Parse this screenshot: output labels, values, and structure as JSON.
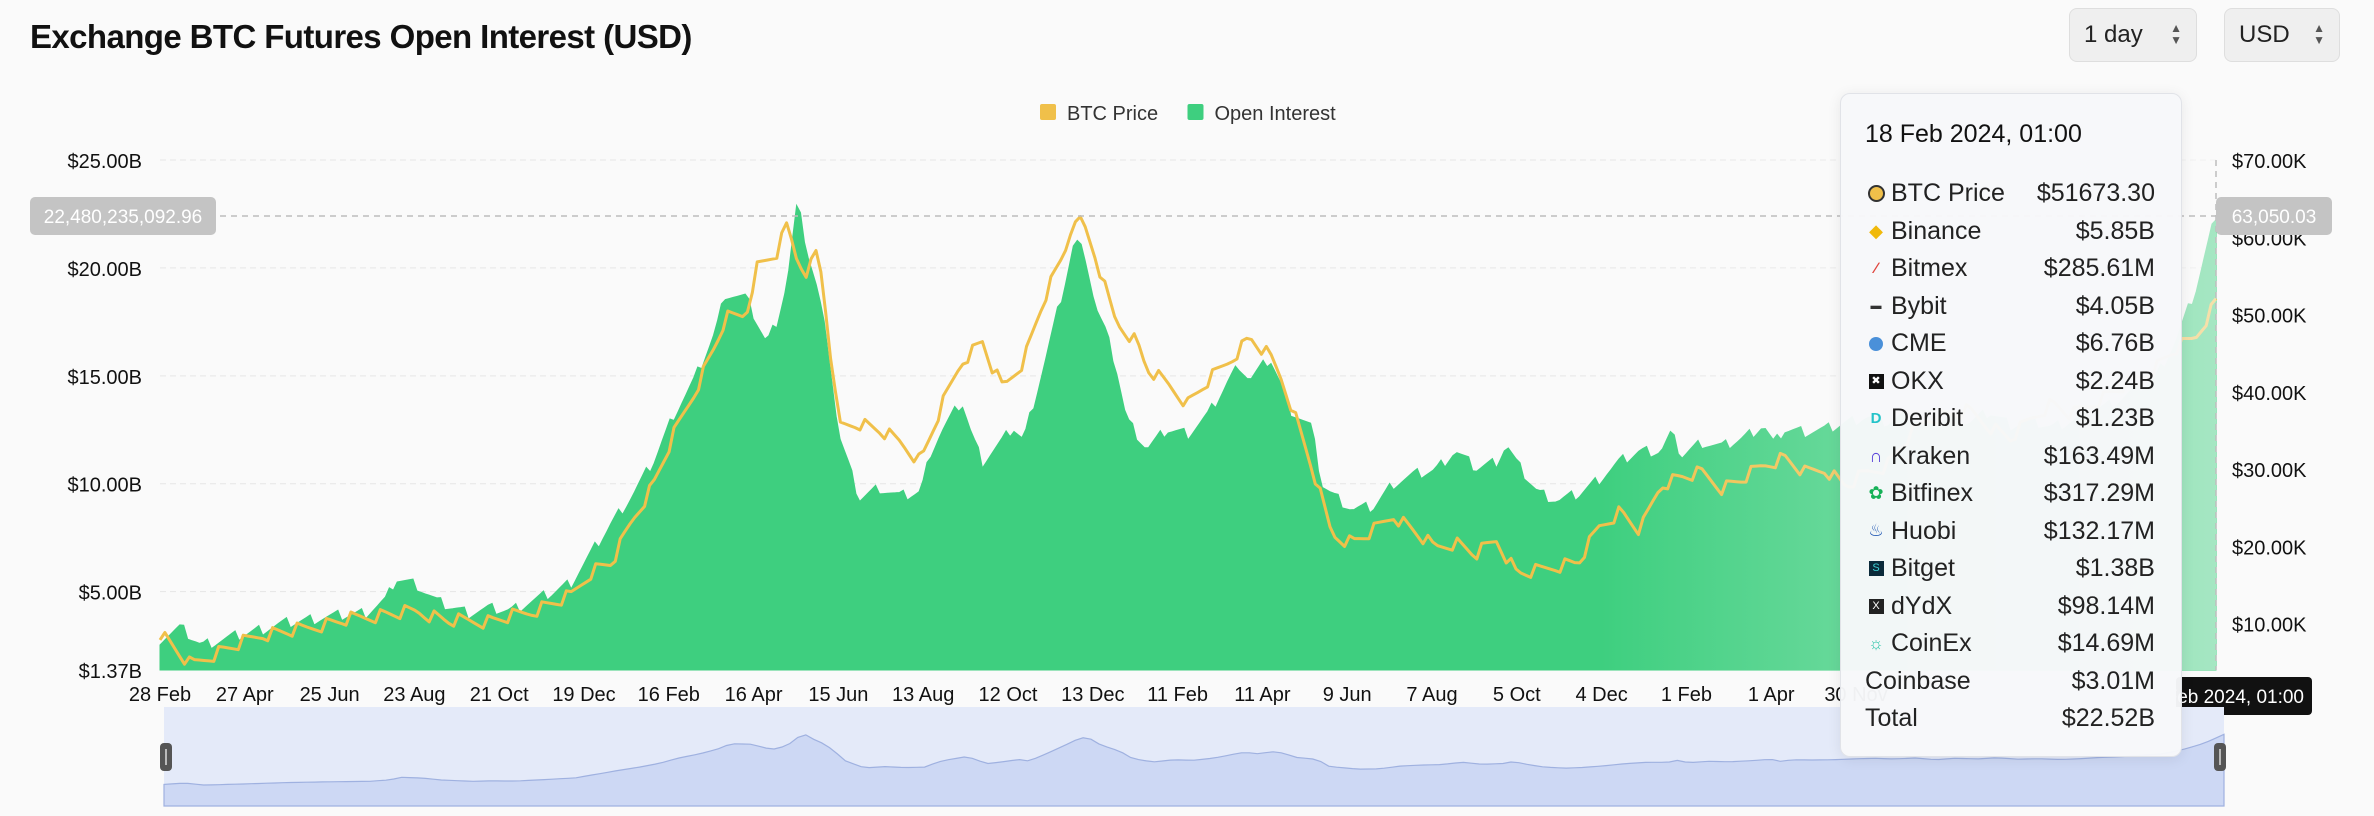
{
  "header": {
    "title": "Exchange BTC Futures Open Interest (USD)",
    "interval_select": "1 day",
    "currency_select": "USD"
  },
  "chart_data": {
    "type": "area",
    "title": "Exchange BTC Futures Open Interest (USD)",
    "legend": [
      {
        "name": "BTC Price",
        "color": "#f0c04a"
      },
      {
        "name": "Open Interest",
        "color": "#3ecf7f"
      }
    ],
    "legend_position": "top-center",
    "grid": true,
    "x_tick_labels": [
      "28 Feb",
      "27 Apr",
      "25 Jun",
      "23 Aug",
      "21 Oct",
      "19 Dec",
      "16 Feb",
      "16 Apr",
      "15 Jun",
      "13 Aug",
      "12 Oct",
      "13 Dec",
      "11 Feb",
      "11 Apr",
      "9 Jun",
      "7 Aug",
      "5 Oct",
      "4 Dec",
      "1 Feb",
      "1 Apr",
      "30 Nov"
    ],
    "y_left_tick_labels": [
      "$25.00B",
      "$20.00B",
      "$15.00B",
      "$10.00B",
      "$5.00B",
      "$1.37B"
    ],
    "y_left_tick_values": [
      25,
      20,
      15,
      10,
      5,
      1.37
    ],
    "y_left_range": [
      1.37,
      25
    ],
    "y_left_unit": "USD billions",
    "y_right_tick_labels": [
      "$70.00K",
      "$60.00K",
      "$50.00K",
      "$40.00K",
      "$30.00K",
      "$20.00K",
      "$10.00K"
    ],
    "y_right_tick_values": [
      70,
      60,
      50,
      40,
      30,
      20,
      10
    ],
    "y_right_range": [
      4,
      70
    ],
    "y_right_unit": "USD thousands",
    "crosshair": {
      "left_value_label": "22,480,235,092.96",
      "right_value_label": "63,050.03",
      "x_label": "18 Feb 2024, 01:00"
    },
    "series": [
      {
        "name": "Open Interest",
        "color": "#3ecf7f",
        "axis": "left",
        "points": [
          [
            0,
            2.8
          ],
          [
            0.01,
            3.3
          ],
          [
            0.02,
            2.5
          ],
          [
            0.04,
            3.0
          ],
          [
            0.06,
            3.5
          ],
          [
            0.08,
            3.8
          ],
          [
            0.1,
            4.0
          ],
          [
            0.11,
            4.6
          ],
          [
            0.115,
            5.6
          ],
          [
            0.125,
            5.3
          ],
          [
            0.135,
            4.5
          ],
          [
            0.15,
            4.0
          ],
          [
            0.16,
            4.2
          ],
          [
            0.17,
            4.1
          ],
          [
            0.18,
            4.5
          ],
          [
            0.19,
            4.9
          ],
          [
            0.2,
            5.4
          ],
          [
            0.21,
            6.8
          ],
          [
            0.22,
            8.2
          ],
          [
            0.23,
            9.5
          ],
          [
            0.24,
            11.0
          ],
          [
            0.25,
            13.2
          ],
          [
            0.26,
            14.8
          ],
          [
            0.27,
            17.0
          ],
          [
            0.275,
            18.8
          ],
          [
            0.285,
            18.6
          ],
          [
            0.295,
            16.5
          ],
          [
            0.3,
            17.5
          ],
          [
            0.305,
            19.3
          ],
          [
            0.31,
            23.0
          ],
          [
            0.315,
            20.7
          ],
          [
            0.32,
            18.9
          ],
          [
            0.325,
            16.3
          ],
          [
            0.33,
            12.3
          ],
          [
            0.34,
            9.3
          ],
          [
            0.35,
            9.8
          ],
          [
            0.36,
            9.4
          ],
          [
            0.37,
            9.6
          ],
          [
            0.375,
            11.5
          ],
          [
            0.38,
            12.4
          ],
          [
            0.39,
            13.8
          ],
          [
            0.395,
            12.2
          ],
          [
            0.4,
            11.0
          ],
          [
            0.41,
            12.0
          ],
          [
            0.415,
            12.6
          ],
          [
            0.42,
            12.0
          ],
          [
            0.43,
            15.5
          ],
          [
            0.44,
            19.2
          ],
          [
            0.445,
            21.3
          ],
          [
            0.45,
            20.6
          ],
          [
            0.455,
            18.2
          ],
          [
            0.46,
            17.0
          ],
          [
            0.465,
            15.4
          ],
          [
            0.47,
            13.0
          ],
          [
            0.48,
            11.6
          ],
          [
            0.49,
            12.5
          ],
          [
            0.5,
            12.3
          ],
          [
            0.51,
            13.2
          ],
          [
            0.52,
            14.8
          ],
          [
            0.525,
            15.5
          ],
          [
            0.53,
            14.8
          ],
          [
            0.54,
            15.8
          ],
          [
            0.545,
            14.6
          ],
          [
            0.55,
            13.4
          ],
          [
            0.56,
            12.6
          ],
          [
            0.565,
            10.0
          ],
          [
            0.57,
            9.5
          ],
          [
            0.58,
            8.8
          ],
          [
            0.59,
            8.9
          ],
          [
            0.6,
            10.0
          ],
          [
            0.61,
            10.4
          ],
          [
            0.62,
            10.6
          ],
          [
            0.63,
            11.5
          ],
          [
            0.64,
            10.7
          ],
          [
            0.65,
            11.0
          ],
          [
            0.655,
            11.8
          ],
          [
            0.66,
            10.9
          ],
          [
            0.67,
            9.6
          ],
          [
            0.68,
            9.2
          ],
          [
            0.69,
            9.5
          ],
          [
            0.7,
            10.2
          ],
          [
            0.71,
            11.0
          ],
          [
            0.72,
            11.5
          ],
          [
            0.73,
            11.5
          ],
          [
            0.735,
            12.3
          ],
          [
            0.74,
            11.3
          ],
          [
            0.75,
            11.9
          ],
          [
            0.76,
            11.7
          ],
          [
            0.77,
            12.1
          ],
          [
            0.78,
            12.7
          ],
          [
            0.785,
            11.8
          ],
          [
            0.79,
            12.5
          ],
          [
            0.8,
            12.4
          ],
          [
            0.81,
            12.5
          ],
          [
            0.82,
            12.8
          ],
          [
            0.83,
            13.1
          ],
          [
            0.84,
            12.8
          ],
          [
            0.85,
            13.2
          ],
          [
            0.86,
            12.5
          ],
          [
            0.87,
            13.1
          ],
          [
            0.88,
            12.8
          ],
          [
            0.89,
            13.3
          ],
          [
            0.9,
            12.7
          ],
          [
            0.91,
            12.9
          ],
          [
            0.92,
            12.6
          ],
          [
            0.93,
            12.9
          ],
          [
            0.94,
            13.4
          ],
          [
            0.95,
            13.7
          ],
          [
            0.96,
            14.3
          ],
          [
            0.97,
            14.8
          ],
          [
            0.98,
            16.5
          ],
          [
            0.99,
            18.9
          ],
          [
            1.0,
            22.5
          ]
        ]
      },
      {
        "name": "BTC Price",
        "color": "#f0c04a",
        "axis": "right",
        "points": [
          [
            0,
            8.8
          ],
          [
            0.015,
            4.6
          ],
          [
            0.03,
            6.5
          ],
          [
            0.05,
            8.6
          ],
          [
            0.07,
            9.3
          ],
          [
            0.09,
            10.5
          ],
          [
            0.11,
            11.2
          ],
          [
            0.125,
            11.6
          ],
          [
            0.14,
            10.4
          ],
          [
            0.16,
            10.3
          ],
          [
            0.18,
            11.5
          ],
          [
            0.2,
            13.6
          ],
          [
            0.21,
            16.8
          ],
          [
            0.22,
            18.0
          ],
          [
            0.23,
            23.5
          ],
          [
            0.24,
            28.0
          ],
          [
            0.25,
            34.5
          ],
          [
            0.26,
            40.0
          ],
          [
            0.27,
            46.0
          ],
          [
            0.275,
            49.5
          ],
          [
            0.285,
            50.0
          ],
          [
            0.29,
            56.0
          ],
          [
            0.3,
            58.0
          ],
          [
            0.305,
            61.5
          ],
          [
            0.31,
            57.0
          ],
          [
            0.315,
            55.5
          ],
          [
            0.32,
            58.5
          ],
          [
            0.325,
            48.0
          ],
          [
            0.33,
            35.5
          ],
          [
            0.34,
            36.0
          ],
          [
            0.35,
            35.0
          ],
          [
            0.36,
            33.5
          ],
          [
            0.37,
            31.0
          ],
          [
            0.38,
            38.0
          ],
          [
            0.39,
            44.0
          ],
          [
            0.4,
            46.5
          ],
          [
            0.405,
            43.0
          ],
          [
            0.41,
            40.5
          ],
          [
            0.42,
            44.0
          ],
          [
            0.43,
            52.0
          ],
          [
            0.44,
            58.0
          ],
          [
            0.445,
            63.0
          ],
          [
            0.45,
            61.0
          ],
          [
            0.455,
            57.5
          ],
          [
            0.46,
            53.0
          ],
          [
            0.465,
            49.0
          ],
          [
            0.475,
            46.5
          ],
          [
            0.48,
            43.0
          ],
          [
            0.49,
            41.0
          ],
          [
            0.5,
            38.5
          ],
          [
            0.51,
            41.5
          ],
          [
            0.52,
            44.0
          ],
          [
            0.53,
            47.0
          ],
          [
            0.54,
            44.5
          ],
          [
            0.545,
            42.0
          ],
          [
            0.55,
            38.5
          ],
          [
            0.56,
            30.5
          ],
          [
            0.57,
            21.5
          ],
          [
            0.58,
            20.5
          ],
          [
            0.59,
            22.0
          ],
          [
            0.6,
            24.0
          ],
          [
            0.61,
            22.0
          ],
          [
            0.62,
            19.8
          ],
          [
            0.63,
            20.5
          ],
          [
            0.64,
            19.0
          ],
          [
            0.65,
            20.8
          ],
          [
            0.66,
            16.5
          ],
          [
            0.67,
            16.8
          ],
          [
            0.68,
            17.5
          ],
          [
            0.69,
            18.0
          ],
          [
            0.7,
            22.5
          ],
          [
            0.71,
            24.5
          ],
          [
            0.72,
            22.0
          ],
          [
            0.73,
            28.0
          ],
          [
            0.74,
            29.0
          ],
          [
            0.75,
            29.5
          ],
          [
            0.76,
            27.5
          ],
          [
            0.77,
            28.8
          ],
          [
            0.78,
            30.5
          ],
          [
            0.79,
            31.5
          ],
          [
            0.8,
            29.5
          ],
          [
            0.81,
            30.0
          ],
          [
            0.82,
            27.8
          ],
          [
            0.83,
            29.5
          ],
          [
            0.84,
            30.5
          ],
          [
            0.85,
            34.0
          ],
          [
            0.86,
            36.5
          ],
          [
            0.87,
            37.0
          ],
          [
            0.88,
            37.5
          ],
          [
            0.89,
            35.5
          ],
          [
            0.9,
            34.0
          ],
          [
            0.91,
            36.5
          ],
          [
            0.92,
            38.5
          ],
          [
            0.93,
            37.0
          ],
          [
            0.94,
            38.5
          ],
          [
            0.95,
            40.0
          ],
          [
            0.96,
            41.5
          ],
          [
            0.97,
            43.0
          ],
          [
            0.98,
            45.5
          ],
          [
            0.99,
            47.0
          ],
          [
            1.0,
            51.7
          ]
        ]
      }
    ]
  },
  "tooltip": {
    "date": "18 Feb 2024, 01:00",
    "rows": [
      {
        "icon": "btc-price-dot-icon",
        "label": "BTC Price",
        "value": "$51673.30"
      },
      {
        "icon": "binance-icon",
        "label": "Binance",
        "value": "$5.85B"
      },
      {
        "icon": "bitmex-icon",
        "label": "Bitmex",
        "value": "$285.61M"
      },
      {
        "icon": "bybit-icon",
        "label": "Bybit",
        "value": "$4.05B"
      },
      {
        "icon": "cme-icon",
        "label": "CME",
        "value": "$6.76B"
      },
      {
        "icon": "okx-icon",
        "label": "OKX",
        "value": "$2.24B"
      },
      {
        "icon": "deribit-icon",
        "label": "Deribit",
        "value": "$1.23B"
      },
      {
        "icon": "kraken-icon",
        "label": "Kraken",
        "value": "$163.49M"
      },
      {
        "icon": "bitfinex-icon",
        "label": "Bitfinex",
        "value": "$317.29M"
      },
      {
        "icon": "huobi-icon",
        "label": "Huobi",
        "value": "$132.17M"
      },
      {
        "icon": "bitget-icon",
        "label": "Bitget",
        "value": "$1.38B"
      },
      {
        "icon": "dydx-icon",
        "label": "dYdX",
        "value": "$98.14M"
      },
      {
        "icon": "coinex-icon",
        "label": "CoinEx",
        "value": "$14.69M"
      },
      {
        "icon": "",
        "label": "Coinbase",
        "value": "$3.01M"
      },
      {
        "icon": "",
        "label": "Total",
        "value": "$22.52B"
      }
    ]
  }
}
